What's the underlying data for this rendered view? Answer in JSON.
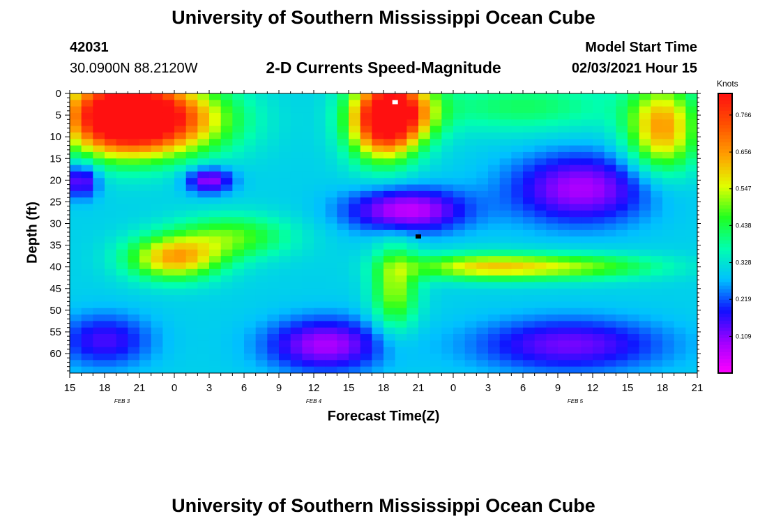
{
  "header": {
    "title_top": "University of Southern Mississippi Ocean Cube",
    "title_bottom": "University of Southern Mississippi Ocean Cube",
    "station_id": "42031",
    "location": "30.0900N 88.2120W",
    "plot_title": "2-D Currents Speed-Magnitude",
    "model_start_label": "Model Start Time",
    "model_start_value": "02/03/2021 Hour 15"
  },
  "chart_data": {
    "type": "heatmap",
    "title": "2-D Currents Speed-Magnitude",
    "xlabel": "Forecast Time(Z)",
    "ylabel": "Depth (ft)",
    "x_tick_labels": [
      "15",
      "18",
      "21",
      "0",
      "3",
      "6",
      "9",
      "12",
      "15",
      "18",
      "21",
      "0",
      "3",
      "6",
      "9",
      "12",
      "15",
      "18",
      "21"
    ],
    "x_hours": [
      0,
      3,
      6,
      9,
      12,
      15,
      18,
      21,
      24,
      27,
      30,
      33,
      36,
      39,
      42,
      45,
      48,
      51,
      54
    ],
    "date_labels": [
      {
        "text": "FEB 3",
        "hour": 4.5
      },
      {
        "text": "FEB 4",
        "hour": 21
      },
      {
        "text": "FEB 5",
        "hour": 43.5
      }
    ],
    "y_ticks": [
      0,
      5,
      10,
      15,
      20,
      25,
      30,
      35,
      40,
      45,
      50,
      55,
      60
    ],
    "ylim": [
      0,
      64.5
    ],
    "xlim_hours": [
      0,
      54
    ],
    "colorbar": {
      "unit": "Knots",
      "ticks": [
        0.766,
        0.656,
        0.547,
        0.438,
        0.328,
        0.219,
        0.109
      ],
      "range": [
        0.0,
        0.83
      ],
      "colors": [
        "#ff00ff",
        "#a000ff",
        "#1010ff",
        "#00c0ff",
        "#00ffb0",
        "#20ff20",
        "#e0ff00",
        "#ffa000",
        "#ff5000",
        "#ff1010"
      ]
    },
    "markers": [
      {
        "kind": "max",
        "color": "#ffffff",
        "hour": 28,
        "depth": 2
      },
      {
        "kind": "min",
        "color": "#000000",
        "hour": 30,
        "depth": 33
      }
    ],
    "field_description": {
      "grid_hours_step": 1,
      "grid_depth_step": 1.5,
      "blobs": [
        {
          "h": 4,
          "d": 5,
          "sh": 5,
          "sd": 9,
          "v": 0.5
        },
        {
          "h": 8,
          "d": 6,
          "sh": 6,
          "sd": 8,
          "v": 0.4
        },
        {
          "h": 27,
          "d": 6,
          "sh": 3,
          "sd": 9,
          "v": 0.55
        },
        {
          "h": 29,
          "d": 4,
          "sh": 3,
          "sd": 7,
          "v": 0.25
        },
        {
          "h": 51,
          "d": 8,
          "sh": 3,
          "sd": 10,
          "v": 0.35
        },
        {
          "h": 39,
          "d": 3,
          "sh": 8,
          "sd": 6,
          "v": 0.12
        },
        {
          "h": 9,
          "d": 38,
          "sh": 4,
          "sd": 5,
          "v": 0.33
        },
        {
          "h": 14,
          "d": 33,
          "sh": 5,
          "sd": 5,
          "v": 0.18
        },
        {
          "h": 35,
          "d": 40,
          "sh": 6,
          "sd": 3,
          "v": 0.22
        },
        {
          "h": 43,
          "d": 40,
          "sh": 8,
          "sd": 3,
          "v": 0.2
        },
        {
          "h": 28,
          "d": 45,
          "sh": 2,
          "sd": 10,
          "v": 0.22
        },
        {
          "h": 12,
          "d": 20,
          "sh": 2,
          "sd": 3,
          "v": -0.22
        },
        {
          "h": 1,
          "d": 20,
          "sh": 1.5,
          "sd": 4,
          "v": -0.2
        },
        {
          "h": 29,
          "d": 27,
          "sh": 5,
          "sd": 5,
          "v": -0.25
        },
        {
          "h": 44,
          "d": 22,
          "sh": 6,
          "sd": 8,
          "v": -0.22
        },
        {
          "h": 22,
          "d": 58,
          "sh": 5,
          "sd": 6,
          "v": -0.22
        },
        {
          "h": 3,
          "d": 57,
          "sh": 4,
          "sd": 6,
          "v": -0.15
        },
        {
          "h": 43,
          "d": 58,
          "sh": 8,
          "sd": 6,
          "v": -0.18
        }
      ],
      "base": 0.3
    }
  }
}
